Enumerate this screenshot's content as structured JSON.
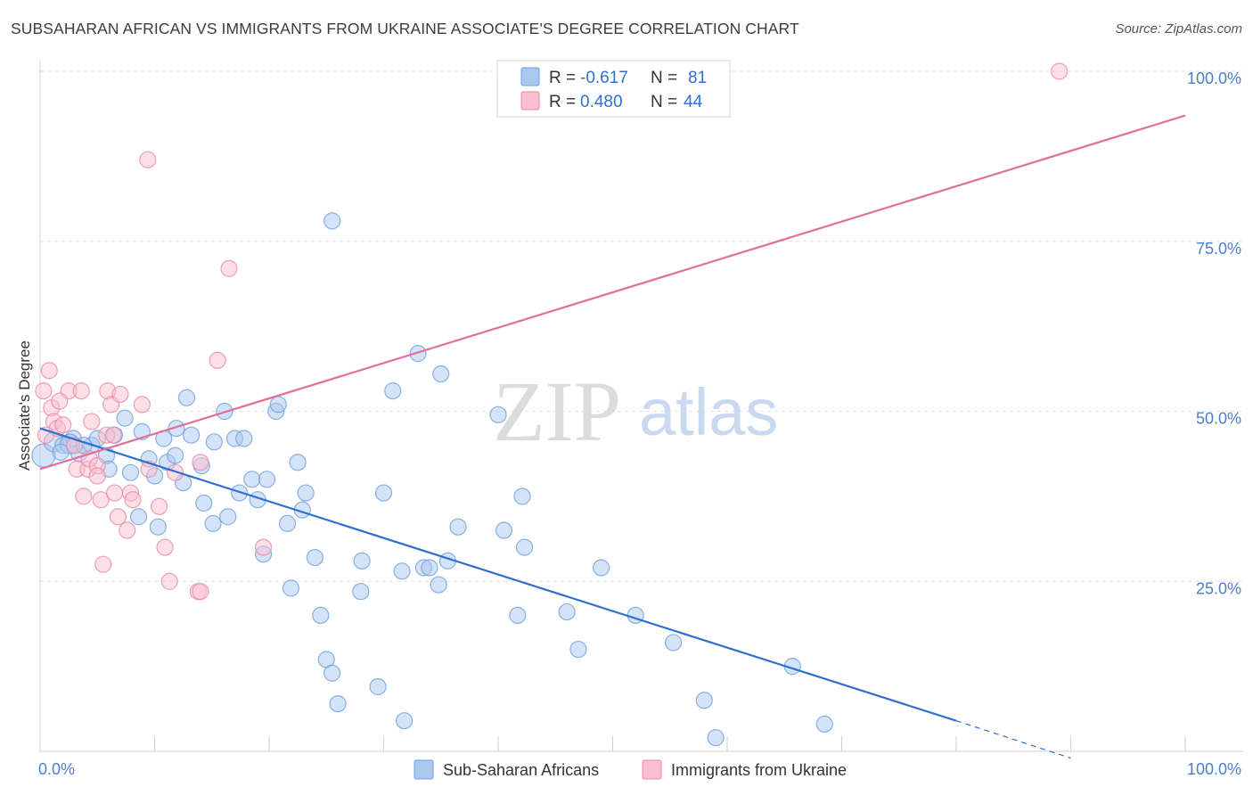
{
  "header": {
    "title": "SUBSAHARAN AFRICAN VS IMMIGRANTS FROM UKRAINE ASSOCIATE'S DEGREE CORRELATION CHART",
    "source": "Source: ZipAtlas.com"
  },
  "watermark": {
    "zip": "ZIP",
    "atlas": "atlas"
  },
  "legend": {
    "r_label": "R =",
    "n_label": "N =",
    "items": [
      {
        "r": "-0.617",
        "n": "81",
        "color": "#a9c8f0",
        "stroke": "#6f9fdc"
      },
      {
        "r": "0.480",
        "n": "44",
        "color": "#f9bfd0",
        "stroke": "#e88aa6"
      }
    ]
  },
  "bottom_legend": {
    "items": [
      {
        "label": "Sub-Saharan Africans",
        "color": "#a9c8f0",
        "stroke": "#6f9fdc"
      },
      {
        "label": "Immigrants from Ukraine",
        "color": "#f9bfd0",
        "stroke": "#e88aa6"
      }
    ]
  },
  "chart_data": {
    "type": "scatter",
    "title": "SUBSAHARAN AFRICAN VS IMMIGRANTS FROM UKRAINE ASSOCIATE'S DEGREE CORRELATION CHART",
    "xlabel": "",
    "ylabel": "Associate's Degree",
    "xlim": [
      0,
      100
    ],
    "ylim": [
      0,
      102
    ],
    "x_tick_labels": [
      "0.0%",
      "100.0%"
    ],
    "y_tick_labels": [
      "25.0%",
      "50.0%",
      "75.0%",
      "100.0%"
    ],
    "y_ticks": [
      25,
      50,
      75,
      100
    ],
    "grid": true,
    "legend_position": "top-center",
    "series": [
      {
        "name": "Sub-Saharan Africans",
        "color": "#6f9fdc",
        "fill": "#a9c8f0",
        "trend": {
          "x0": 0,
          "y0": 47.5,
          "x1": 80,
          "y1": 4.5,
          "dash_to_x": 90,
          "dash_to_y": -1
        },
        "points": [
          [
            0.3,
            43.5
          ],
          [
            1.2,
            45.5
          ],
          [
            2.0,
            45.0
          ],
          [
            2.9,
            46.0
          ],
          [
            3.4,
            43.8
          ],
          [
            4.5,
            45.0
          ],
          [
            5.8,
            43.5
          ],
          [
            6.5,
            46.5
          ],
          [
            7.4,
            49.0
          ],
          [
            7.9,
            41.0
          ],
          [
            8.6,
            34.5
          ],
          [
            8.9,
            47.0
          ],
          [
            9.5,
            43.0
          ],
          [
            10.0,
            40.5
          ],
          [
            10.3,
            33.0
          ],
          [
            11.1,
            42.5
          ],
          [
            11.8,
            43.5
          ],
          [
            11.9,
            47.5
          ],
          [
            12.5,
            39.5
          ],
          [
            12.8,
            52.0
          ],
          [
            13.2,
            46.5
          ],
          [
            14.1,
            42.0
          ],
          [
            14.3,
            36.5
          ],
          [
            15.1,
            33.5
          ],
          [
            15.2,
            45.5
          ],
          [
            16.1,
            50.0
          ],
          [
            16.4,
            34.5
          ],
          [
            17.0,
            46.0
          ],
          [
            17.4,
            38.0
          ],
          [
            17.8,
            46.0
          ],
          [
            18.5,
            40.0
          ],
          [
            19.0,
            37.0
          ],
          [
            19.5,
            29.0
          ],
          [
            19.8,
            40.0
          ],
          [
            20.6,
            50.0
          ],
          [
            20.8,
            51.0
          ],
          [
            21.6,
            33.5
          ],
          [
            21.9,
            24.0
          ],
          [
            22.5,
            42.5
          ],
          [
            22.9,
            35.5
          ],
          [
            23.2,
            38.0
          ],
          [
            24.0,
            28.5
          ],
          [
            24.5,
            20.0
          ],
          [
            25.0,
            13.5
          ],
          [
            25.5,
            11.5
          ],
          [
            26.0,
            7.0
          ],
          [
            25.5,
            78.0
          ],
          [
            28.1,
            28.0
          ],
          [
            28.0,
            23.5
          ],
          [
            29.5,
            9.5
          ],
          [
            30.0,
            38.0
          ],
          [
            30.8,
            53.0
          ],
          [
            31.6,
            26.5
          ],
          [
            31.8,
            4.5
          ],
          [
            33.0,
            58.5
          ],
          [
            33.5,
            27.0
          ],
          [
            34.0,
            27.0
          ],
          [
            34.8,
            24.5
          ],
          [
            35.0,
            55.5
          ],
          [
            35.6,
            28.0
          ],
          [
            36.5,
            33.0
          ],
          [
            40.0,
            49.5
          ],
          [
            40.5,
            32.5
          ],
          [
            41.7,
            20.0
          ],
          [
            42.1,
            37.5
          ],
          [
            42.3,
            30.0
          ],
          [
            46.0,
            20.5
          ],
          [
            47.0,
            15.0
          ],
          [
            49.0,
            27.0
          ],
          [
            52.0,
            20.0
          ],
          [
            55.3,
            16.0
          ],
          [
            58.0,
            7.5
          ],
          [
            59.0,
            2.0
          ],
          [
            65.7,
            12.5
          ],
          [
            68.5,
            4.0
          ],
          [
            2.6,
            45.2
          ],
          [
            1.8,
            44.0
          ],
          [
            5.0,
            46.0
          ],
          [
            6.0,
            41.5
          ],
          [
            3.8,
            45.0
          ],
          [
            10.8,
            46.0
          ]
        ]
      },
      {
        "name": "Immigrants from Ukraine",
        "color": "#e88aa6",
        "fill": "#f9bfd0",
        "trend": {
          "x0": 0,
          "y0": 41.5,
          "x1": 100,
          "y1": 93.5
        },
        "points": [
          [
            0.3,
            53.0
          ],
          [
            0.8,
            56.0
          ],
          [
            1.0,
            50.5
          ],
          [
            1.2,
            48.5
          ],
          [
            1.5,
            47.5
          ],
          [
            2.0,
            48.0
          ],
          [
            2.5,
            53.0
          ],
          [
            3.0,
            45.0
          ],
          [
            3.2,
            41.5
          ],
          [
            3.6,
            53.0
          ],
          [
            3.8,
            37.5
          ],
          [
            4.2,
            41.5
          ],
          [
            4.3,
            43.0
          ],
          [
            4.5,
            48.5
          ],
          [
            5.0,
            42.0
          ],
          [
            5.0,
            40.5
          ],
          [
            5.3,
            37.0
          ],
          [
            5.5,
            27.5
          ],
          [
            5.8,
            46.5
          ],
          [
            5.9,
            53.0
          ],
          [
            6.2,
            51.0
          ],
          [
            6.4,
            46.5
          ],
          [
            6.5,
            38.0
          ],
          [
            6.8,
            34.5
          ],
          [
            7.0,
            52.5
          ],
          [
            7.6,
            32.5
          ],
          [
            7.9,
            38.0
          ],
          [
            8.1,
            37.0
          ],
          [
            8.9,
            51.0
          ],
          [
            9.4,
            87.0
          ],
          [
            9.5,
            41.5
          ],
          [
            10.4,
            36.0
          ],
          [
            10.9,
            30.0
          ],
          [
            11.3,
            25.0
          ],
          [
            11.8,
            41.0
          ],
          [
            13.8,
            23.5
          ],
          [
            14.0,
            42.5
          ],
          [
            14.0,
            23.5
          ],
          [
            15.5,
            57.5
          ],
          [
            16.5,
            71.0
          ],
          [
            19.5,
            30.0
          ],
          [
            89.0,
            100.0
          ],
          [
            1.7,
            51.5
          ],
          [
            0.5,
            46.5
          ]
        ]
      }
    ]
  }
}
